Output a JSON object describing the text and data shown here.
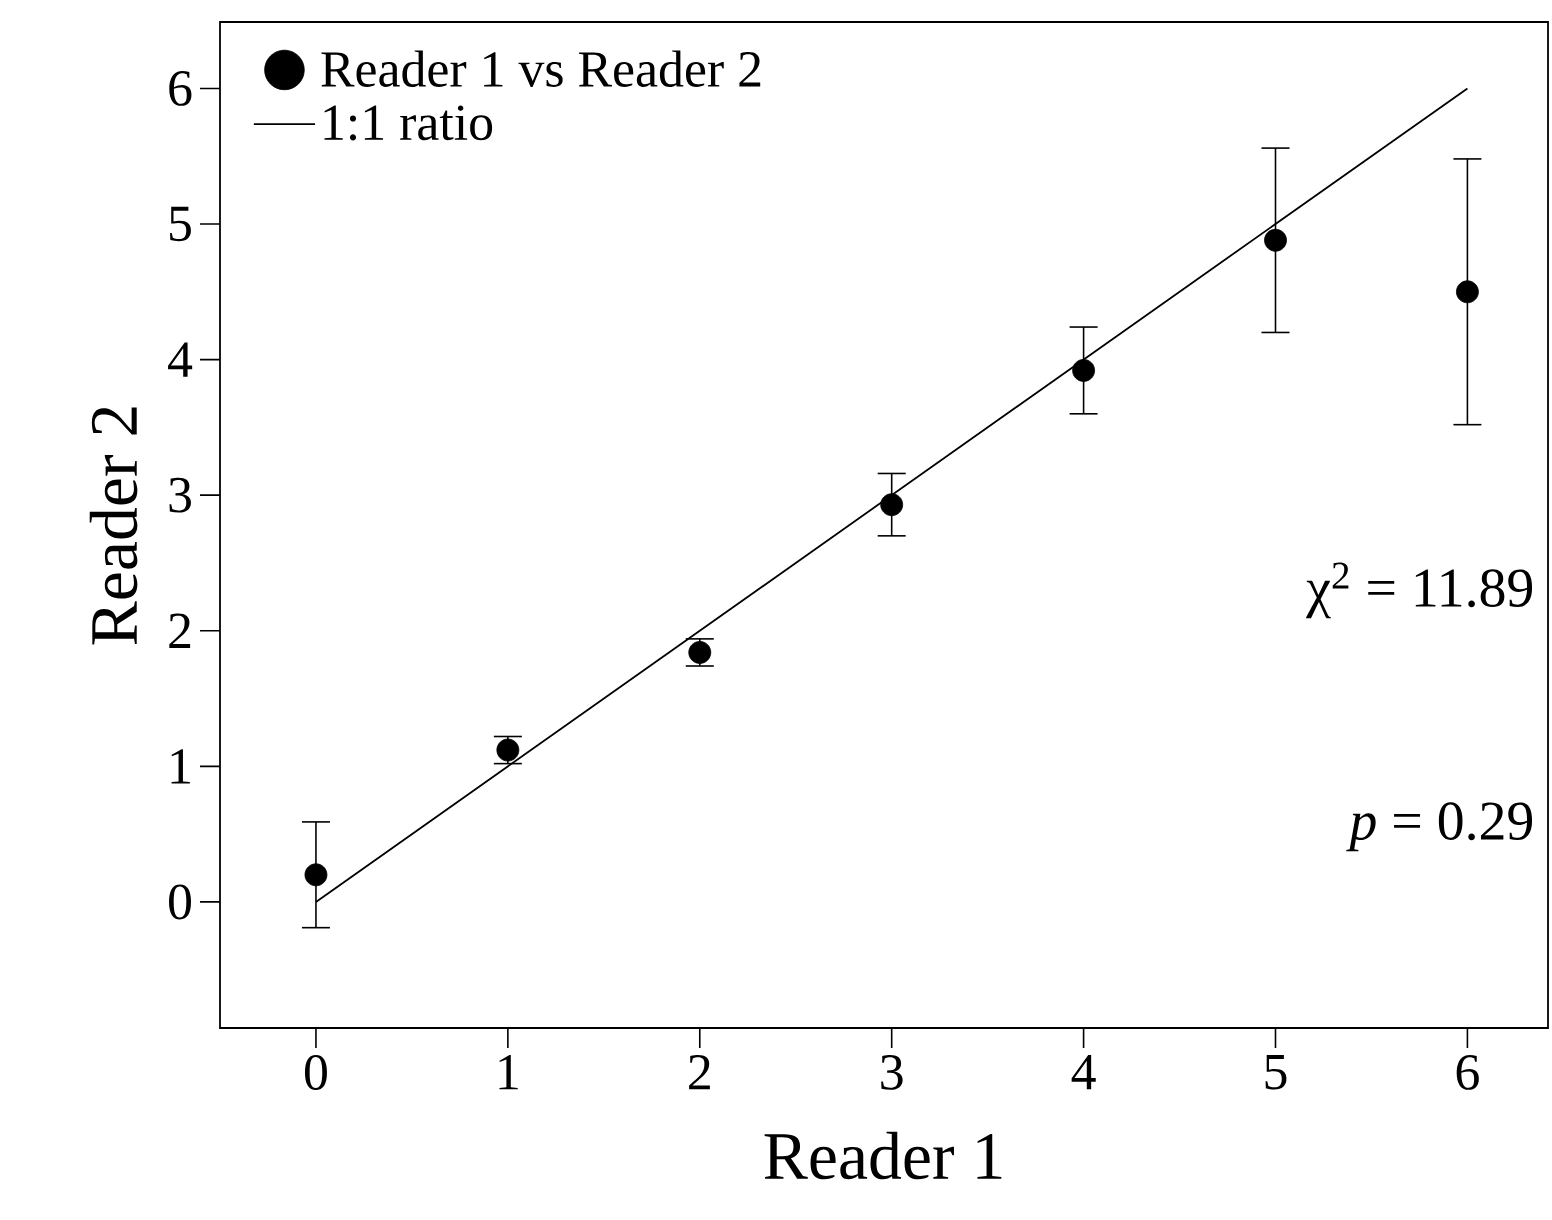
{
  "chart_data": {
    "type": "scatter",
    "xlabel": "Reader 1",
    "ylabel": "Reader 2",
    "x": [
      0,
      1,
      2,
      3,
      4,
      5,
      6
    ],
    "series": [
      {
        "name": "Reader 1 vs Reader 2",
        "color": "#000000",
        "marker": "circle",
        "values": [
          0.2,
          1.12,
          1.84,
          2.93,
          3.92,
          4.88,
          4.5
        ],
        "errors": [
          0.39,
          0.1,
          0.1,
          0.23,
          0.32,
          0.68,
          0.98
        ]
      },
      {
        "name": "1:1 ratio",
        "type": "line",
        "color": "#000000",
        "marker": "none",
        "line_style": "solid",
        "x": [
          0,
          6
        ],
        "values": [
          0,
          6
        ]
      }
    ],
    "xlim": [
      -0.5,
      6.42
    ],
    "ylim": [
      -0.93,
      6.49
    ],
    "xticks": [
      0,
      1,
      2,
      3,
      4,
      5,
      6
    ],
    "yticks": [
      0,
      1,
      2,
      3,
      4,
      5,
      6
    ],
    "legend": "top left",
    "annotations": [
      "χ$^{2}$ = 11.89",
      "*p* = 0.29"
    ]
  }
}
